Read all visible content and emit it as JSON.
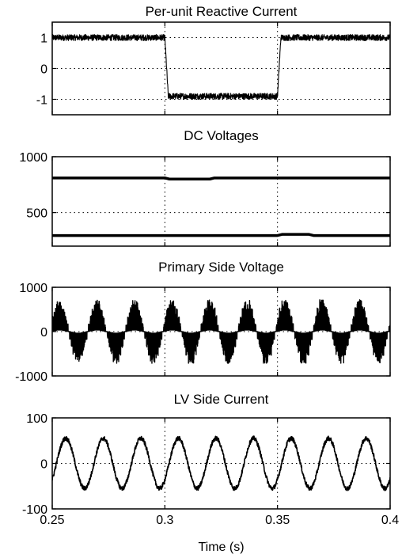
{
  "chart_data": [
    {
      "type": "line",
      "title": "Per-unit Reactive Current",
      "xlim": [
        0.25,
        0.4
      ],
      "ylim": [
        -1.5,
        1.5
      ],
      "yticks": [
        -1,
        0,
        1
      ],
      "ytick_labels": [
        "-1",
        "0",
        "1"
      ],
      "xticks": [
        0.25,
        0.3,
        0.35,
        0.4
      ],
      "grid": true,
      "series": [
        {
          "x": [
            0.25,
            0.3,
            0.3015,
            0.35,
            0.3515,
            0.4
          ],
          "y": [
            1.0,
            1.0,
            -0.9,
            -0.9,
            1.0,
            1.0
          ],
          "ripple": 0.1
        }
      ]
    },
    {
      "type": "line",
      "title": "DC Voltages",
      "xlim": [
        0.25,
        0.4
      ],
      "ylim": [
        200,
        1000
      ],
      "yticks": [
        500,
        1000
      ],
      "ytick_labels": [
        "500",
        "1000"
      ],
      "xticks": [
        0.25,
        0.3,
        0.35,
        0.4
      ],
      "grid": true,
      "series": [
        {
          "x": [
            0.25,
            0.3,
            0.302,
            0.32,
            0.322,
            0.4
          ],
          "y": [
            810,
            810,
            800,
            800,
            810,
            810
          ]
        },
        {
          "x": [
            0.25,
            0.35,
            0.352,
            0.364,
            0.366,
            0.4
          ],
          "y": [
            295,
            295,
            305,
            305,
            295,
            295
          ]
        }
      ]
    },
    {
      "type": "line",
      "title": "Primary Side Voltage",
      "xlim": [
        0.25,
        0.4
      ],
      "ylim": [
        -1000,
        1000
      ],
      "yticks": [
        -1000,
        0,
        1000
      ],
      "ytick_labels": [
        "-1000",
        "0",
        "1000"
      ],
      "xticks": [
        0.25,
        0.3,
        0.35,
        0.4
      ],
      "grid": true,
      "series": [
        {
          "waveform": "pwm-sine",
          "frequency_hz": 60,
          "peak": 720
        }
      ]
    },
    {
      "type": "line",
      "title": "LV Side Current",
      "xlim": [
        0.25,
        0.4
      ],
      "ylim": [
        -100,
        100
      ],
      "yticks": [
        -100,
        0,
        100
      ],
      "ytick_labels": [
        "-100",
        "0",
        "100"
      ],
      "xticks": [
        0.25,
        0.3,
        0.35,
        0.4
      ],
      "xtick_labels": [
        "0.25",
        "0.3",
        "0.35",
        "0.4"
      ],
      "xlabel": "Time (s)",
      "grid": true,
      "series": [
        {
          "waveform": "sine",
          "frequency_hz": 60,
          "peak": 55,
          "ripple": 5
        }
      ]
    }
  ]
}
